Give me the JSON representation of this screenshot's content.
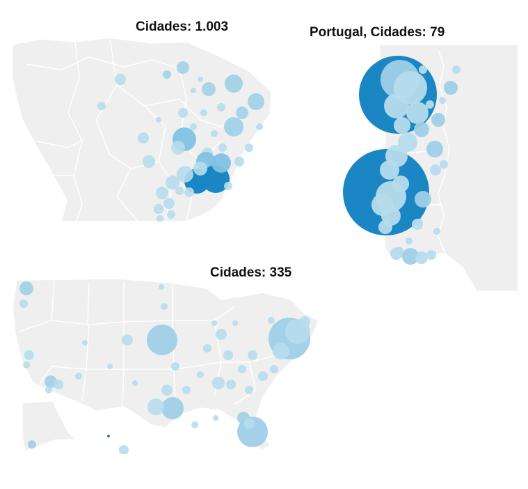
{
  "panels": {
    "brazil": {
      "title": "Cidades: 1.003"
    },
    "portugal": {
      "title": "Portugal, Cidades: 79"
    },
    "usa": {
      "title": "Cidades: 335"
    }
  },
  "colors": {
    "land": "#efefef",
    "border": "#ffffff",
    "bubble_light": "#9fcfe6",
    "bubble_pale": "#b6dcec",
    "bubble_dark": "#1a86c4"
  }
}
